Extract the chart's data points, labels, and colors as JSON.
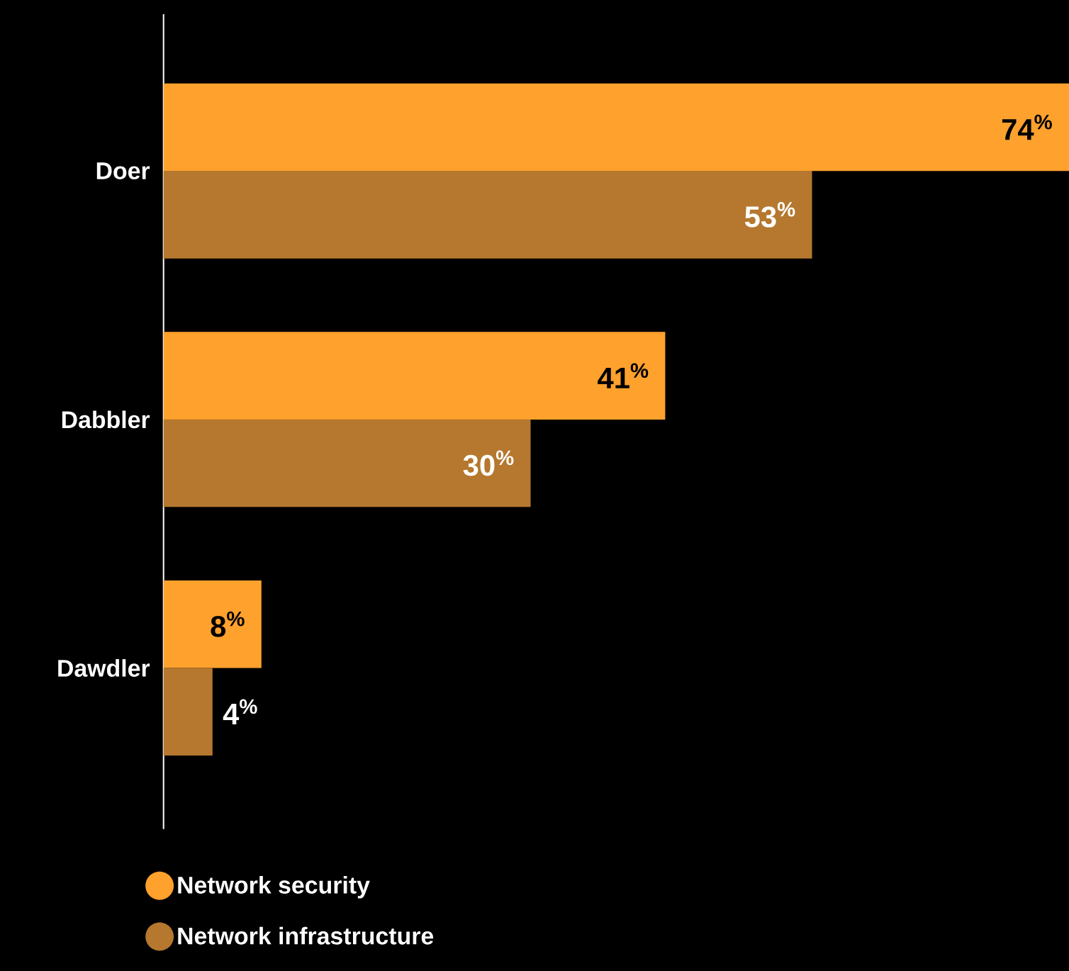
{
  "chart_data": {
    "type": "bar",
    "orientation": "horizontal",
    "categories": [
      "Doer",
      "Dabbler",
      "Dawdler"
    ],
    "series": [
      {
        "name": "Network security",
        "color": "#ffa12d",
        "values": [
          74,
          41,
          8
        ],
        "value_labels": [
          "74$^{%}$",
          "41$^{%}$",
          "8$^{%}$"
        ]
      },
      {
        "name": "Network infrastructure",
        "color": "#b5782e",
        "values": [
          53,
          30,
          4
        ],
        "value_labels": [
          "53$^{%}$",
          "30$^{%}$",
          "4$^{%}$"
        ]
      }
    ],
    "legend": "bottom"
  }
}
